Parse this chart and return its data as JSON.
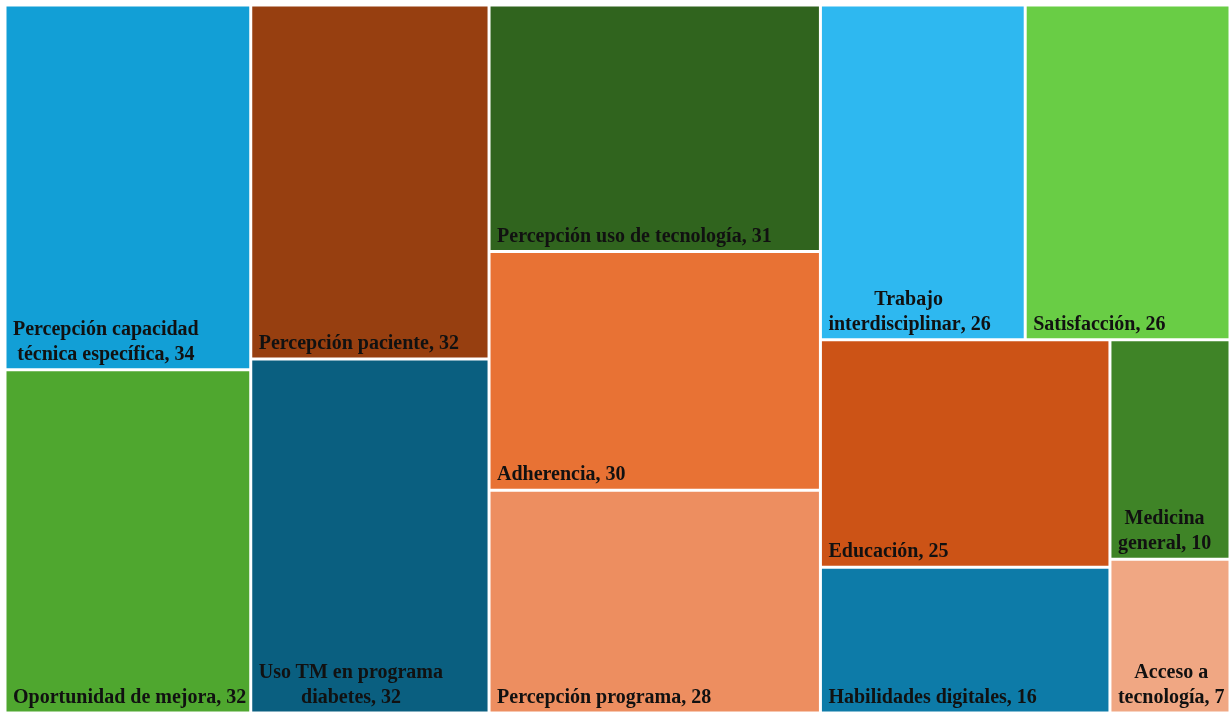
{
  "chart_data": {
    "type": "other",
    "categories": [
      "Percepción capacidad técnica específica",
      "Oportunidad de mejora",
      "Percepción paciente",
      "Uso TM en programa diabetes",
      "Percepción uso de tecnología",
      "Adherencia",
      "Percepción programa",
      "Trabajo interdisciplinar",
      "Satisfacción",
      "Educación",
      "Habilidades digitales",
      "Medicina general",
      "Acceso a tecnología"
    ],
    "values": [
      34,
      32,
      32,
      32,
      31,
      30,
      28,
      26,
      26,
      25,
      16,
      10,
      7
    ],
    "value_labels": [
      ", 34",
      ", 32",
      ", 32",
      ", 32",
      ", 31",
      ", 30",
      ", 28",
      ", 26",
      ", 26",
      ", 25",
      ", 16",
      ", 10",
      ", 7"
    ],
    "colors": [
      "#129fd6",
      "#4fa72f",
      "#973f10",
      "#0a5f80",
      "#30641e",
      "#e87234",
      "#ed8e60",
      "#2eb8f0",
      "#69cd45",
      "#cc5316",
      "#0d7ba8",
      "#3f8427",
      "#f0a783"
    ]
  }
}
